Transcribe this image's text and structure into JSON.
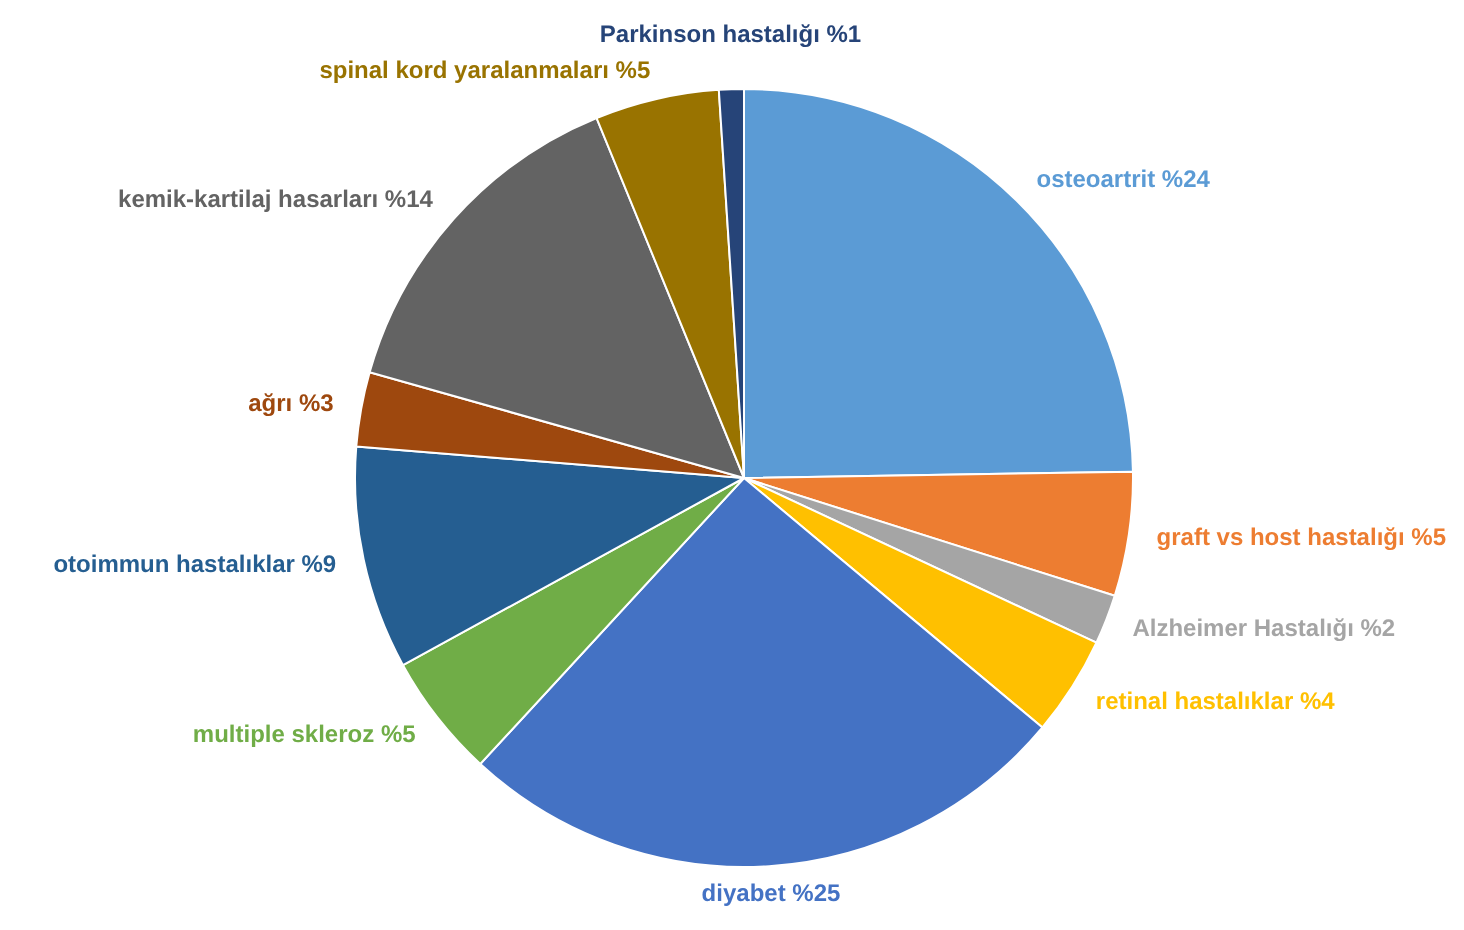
{
  "chart_data": {
    "type": "pie",
    "categories": [
      "osteoartrit",
      "graft vs host hastalığı",
      "Alzheimer Hastalığı",
      "retinal hastalıklar",
      "diyabet",
      "multiple skleroz",
      "otoimmun hastalıklar",
      "ağrı",
      "kemik-kartilaj hasarları",
      "spinal kord yaralanmaları",
      "Parkinson hastalığı"
    ],
    "values": [
      24,
      5,
      2,
      4,
      25,
      5,
      9,
      3,
      14,
      5,
      1
    ],
    "value_labels": [
      "%24",
      "%5",
      "%2",
      "%4",
      "%25",
      "%5",
      "%9",
      "%3",
      "%14",
      "%5",
      "%1"
    ],
    "colors": [
      "#5b9bd5",
      "#ed7d31",
      "#a5a5a5",
      "#ffc000",
      "#4472c4",
      "#70ad47",
      "#255e91",
      "#9e480e",
      "#636363",
      "#997300",
      "#264478"
    ],
    "legend": false
  }
}
